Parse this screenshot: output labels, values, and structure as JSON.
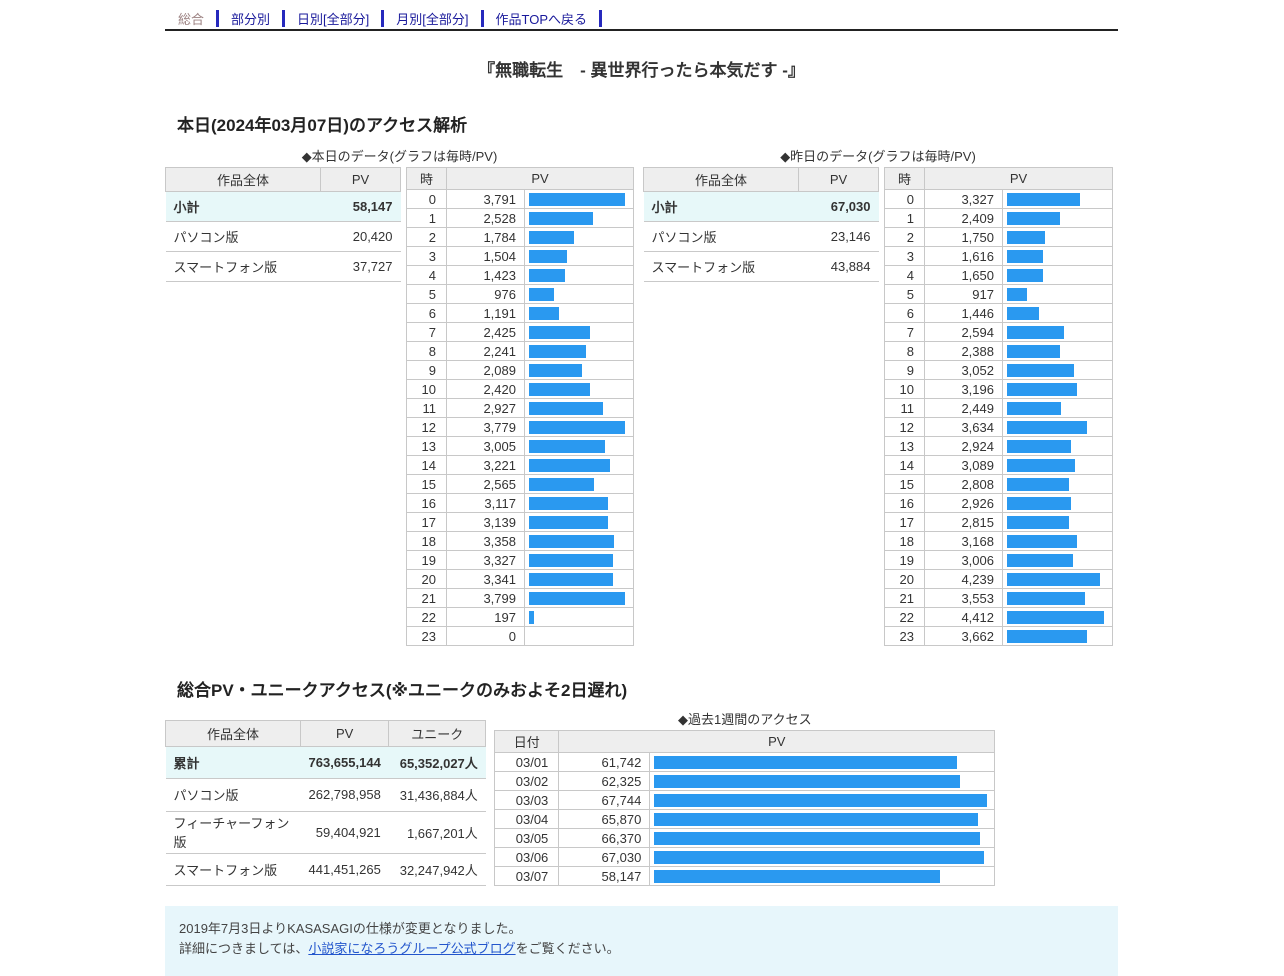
{
  "nav": {
    "items": [
      {
        "label": "総合",
        "current": true
      },
      {
        "label": "部分別",
        "current": false
      },
      {
        "label": "日別[全部分]",
        "current": false
      },
      {
        "label": "月別[全部分]",
        "current": false
      },
      {
        "label": "作品TOPへ戻る",
        "current": false
      }
    ]
  },
  "title": "『無職転生　- 異世界行ったら本気だす -』",
  "sections": {
    "today_heading": "本日(2024年03月07日)のアクセス解析",
    "totals_heading": "総合PV・ユニークアクセス(※ユニークのみおよそ2日遅れ)"
  },
  "today_summary": {
    "caption": "◆本日のデータ(グラフは毎時/PV)",
    "headers": [
      "作品全体",
      "PV"
    ],
    "rows": [
      {
        "label": "小計",
        "pv": 58147,
        "highlight": true
      },
      {
        "label": "パソコン版",
        "pv": 20420
      },
      {
        "label": "スマートフォン版",
        "pv": 37727
      }
    ]
  },
  "yesterday_summary": {
    "caption": "◆昨日のデータ(グラフは毎時/PV)",
    "headers": [
      "作品全体",
      "PV"
    ],
    "rows": [
      {
        "label": "小計",
        "pv": 67030,
        "highlight": true
      },
      {
        "label": "パソコン版",
        "pv": 23146
      },
      {
        "label": "スマートフォン版",
        "pv": 43884
      }
    ]
  },
  "totals": {
    "headers": [
      "作品全体",
      "PV",
      "ユニーク"
    ],
    "unique_suffix": "人",
    "rows": [
      {
        "label": "累計",
        "pv": 763655144,
        "unique": 65352027,
        "highlight": true
      },
      {
        "label": "パソコン版",
        "pv": 262798958,
        "unique": 31436884
      },
      {
        "label": "フィーチャーフォン版",
        "pv": 59404921,
        "unique": 1667201
      },
      {
        "label": "スマートフォン版",
        "pv": 441451265,
        "unique": 32247942
      }
    ]
  },
  "weekly": {
    "caption": "◆過去1週間のアクセス"
  },
  "chart_data": [
    {
      "type": "bar",
      "orientation": "horizontal",
      "title": "◆本日のデータ(グラフは毎時/PV)",
      "col_headers": [
        "時",
        "PV"
      ],
      "xlabel": "PV",
      "ylabel": "時",
      "max_bar_pct": 96,
      "categories": [
        0,
        1,
        2,
        3,
        4,
        5,
        6,
        7,
        8,
        9,
        10,
        11,
        12,
        13,
        14,
        15,
        16,
        17,
        18,
        19,
        20,
        21,
        22,
        23
      ],
      "values": [
        3791,
        2528,
        1784,
        1504,
        1423,
        976,
        1191,
        2425,
        2241,
        2089,
        2420,
        2927,
        3779,
        3005,
        3221,
        2565,
        3117,
        3139,
        3358,
        3327,
        3341,
        3799,
        197,
        0
      ]
    },
    {
      "type": "bar",
      "orientation": "horizontal",
      "title": "◆昨日のデータ(グラフは毎時/PV)",
      "col_headers": [
        "時",
        "PV"
      ],
      "xlabel": "PV",
      "ylabel": "時",
      "max_bar_pct": 96,
      "categories": [
        0,
        1,
        2,
        3,
        4,
        5,
        6,
        7,
        8,
        9,
        10,
        11,
        12,
        13,
        14,
        15,
        16,
        17,
        18,
        19,
        20,
        21,
        22,
        23
      ],
      "values": [
        3327,
        2409,
        1750,
        1616,
        1650,
        917,
        1446,
        2594,
        2388,
        3052,
        3196,
        2449,
        3634,
        2924,
        3089,
        2808,
        2926,
        2815,
        3168,
        3006,
        4239,
        3553,
        4412,
        3662
      ]
    },
    {
      "type": "bar",
      "orientation": "horizontal",
      "title": "◆過去1週間のアクセス",
      "col_headers": [
        "日付",
        "PV"
      ],
      "xlabel": "PV",
      "ylabel": "日付",
      "max_bar_pct": 99,
      "categories": [
        "03/01",
        "03/02",
        "03/03",
        "03/04",
        "03/05",
        "03/06",
        "03/07"
      ],
      "values": [
        61742,
        62325,
        67744,
        65870,
        66370,
        67030,
        58147
      ]
    }
  ],
  "notice": {
    "line1": "2019年7月3日よりKASASAGIの仕様が変更となりました。",
    "line2_pre": "詳細につきましては、",
    "link_label": "小説家になろうグループ公式ブログ",
    "line2_post": "をご覧ください。"
  },
  "colors": {
    "bar": "#2a99f0",
    "header_bg": "#eeeeee",
    "highlight_bg": "#e7f8f9",
    "notice_bg": "#e7f6fb",
    "link": "#2255cc",
    "nav_link": "#19199b",
    "nav_current": "#9c8282",
    "nav_separator": "#2629bd"
  }
}
